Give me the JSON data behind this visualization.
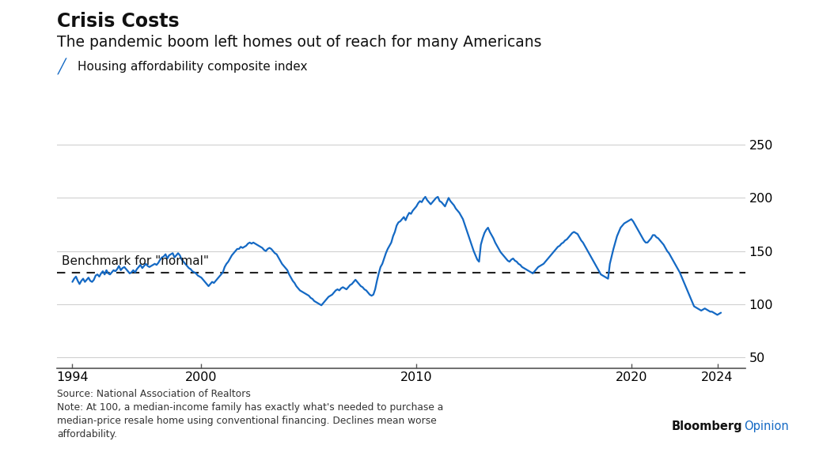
{
  "title": "Crisis Costs",
  "subtitle": "The pandemic boom left homes out of reach for many Americans",
  "legend_label": "Housing affordability composite index",
  "benchmark_label": "Benchmark for \"normal\"",
  "benchmark_value": 130,
  "source_text": "Source: National Association of Realtors\nNote: At 100, a median-income family has exactly what's needed to purchase a\nmedian-price resale home using conventional financing. Declines mean worse\naffordability.",
  "bloomberg_text": "Bloomberg",
  "opinion_text": "Opinion",
  "line_color": "#1469C4",
  "benchmark_color": "#222222",
  "ylim": [
    40,
    265
  ],
  "yticks": [
    50,
    100,
    150,
    200,
    250
  ],
  "xticks": [
    1994,
    2000,
    2010,
    2020,
    2024
  ],
  "background_color": "#ffffff",
  "title_fontsize": 17,
  "subtitle_fontsize": 13.5,
  "data": {
    "years": [
      1994.0,
      1994.083,
      1994.167,
      1994.25,
      1994.333,
      1994.417,
      1994.5,
      1994.583,
      1994.667,
      1994.75,
      1994.833,
      1994.917,
      1995.0,
      1995.083,
      1995.167,
      1995.25,
      1995.333,
      1995.417,
      1995.5,
      1995.583,
      1995.667,
      1995.75,
      1995.833,
      1995.917,
      1996.0,
      1996.083,
      1996.167,
      1996.25,
      1996.333,
      1996.417,
      1996.5,
      1996.583,
      1996.667,
      1996.75,
      1996.833,
      1996.917,
      1997.0,
      1997.083,
      1997.167,
      1997.25,
      1997.333,
      1997.417,
      1997.5,
      1997.583,
      1997.667,
      1997.75,
      1997.833,
      1997.917,
      1998.0,
      1998.083,
      1998.167,
      1998.25,
      1998.333,
      1998.417,
      1998.5,
      1998.583,
      1998.667,
      1998.75,
      1998.833,
      1998.917,
      1999.0,
      1999.083,
      1999.167,
      1999.25,
      1999.333,
      1999.417,
      1999.5,
      1999.583,
      1999.667,
      1999.75,
      1999.833,
      1999.917,
      2000.0,
      2000.083,
      2000.167,
      2000.25,
      2000.333,
      2000.417,
      2000.5,
      2000.583,
      2000.667,
      2000.75,
      2000.833,
      2000.917,
      2001.0,
      2001.083,
      2001.167,
      2001.25,
      2001.333,
      2001.417,
      2001.5,
      2001.583,
      2001.667,
      2001.75,
      2001.833,
      2001.917,
      2002.0,
      2002.083,
      2002.167,
      2002.25,
      2002.333,
      2002.417,
      2002.5,
      2002.583,
      2002.667,
      2002.75,
      2002.833,
      2002.917,
      2003.0,
      2003.083,
      2003.167,
      2003.25,
      2003.333,
      2003.417,
      2003.5,
      2003.583,
      2003.667,
      2003.75,
      2003.833,
      2003.917,
      2004.0,
      2004.083,
      2004.167,
      2004.25,
      2004.333,
      2004.417,
      2004.5,
      2004.583,
      2004.667,
      2004.75,
      2004.833,
      2004.917,
      2005.0,
      2005.083,
      2005.167,
      2005.25,
      2005.333,
      2005.417,
      2005.5,
      2005.583,
      2005.667,
      2005.75,
      2005.833,
      2005.917,
      2006.0,
      2006.083,
      2006.167,
      2006.25,
      2006.333,
      2006.417,
      2006.5,
      2006.583,
      2006.667,
      2006.75,
      2006.833,
      2006.917,
      2007.0,
      2007.083,
      2007.167,
      2007.25,
      2007.333,
      2007.417,
      2007.5,
      2007.583,
      2007.667,
      2007.75,
      2007.833,
      2007.917,
      2008.0,
      2008.083,
      2008.167,
      2008.25,
      2008.333,
      2008.417,
      2008.5,
      2008.583,
      2008.667,
      2008.75,
      2008.833,
      2008.917,
      2009.0,
      2009.083,
      2009.167,
      2009.25,
      2009.333,
      2009.417,
      2009.5,
      2009.583,
      2009.667,
      2009.75,
      2009.833,
      2009.917,
      2010.0,
      2010.083,
      2010.167,
      2010.25,
      2010.333,
      2010.417,
      2010.5,
      2010.583,
      2010.667,
      2010.75,
      2010.833,
      2010.917,
      2011.0,
      2011.083,
      2011.167,
      2011.25,
      2011.333,
      2011.417,
      2011.5,
      2011.583,
      2011.667,
      2011.75,
      2011.833,
      2011.917,
      2012.0,
      2012.083,
      2012.167,
      2012.25,
      2012.333,
      2012.417,
      2012.5,
      2012.583,
      2012.667,
      2012.75,
      2012.833,
      2012.917,
      2013.0,
      2013.083,
      2013.167,
      2013.25,
      2013.333,
      2013.417,
      2013.5,
      2013.583,
      2013.667,
      2013.75,
      2013.833,
      2013.917,
      2014.0,
      2014.083,
      2014.167,
      2014.25,
      2014.333,
      2014.417,
      2014.5,
      2014.583,
      2014.667,
      2014.75,
      2014.833,
      2014.917,
      2015.0,
      2015.083,
      2015.167,
      2015.25,
      2015.333,
      2015.417,
      2015.5,
      2015.583,
      2015.667,
      2015.75,
      2015.833,
      2015.917,
      2016.0,
      2016.083,
      2016.167,
      2016.25,
      2016.333,
      2016.417,
      2016.5,
      2016.583,
      2016.667,
      2016.75,
      2016.833,
      2016.917,
      2017.0,
      2017.083,
      2017.167,
      2017.25,
      2017.333,
      2017.417,
      2017.5,
      2017.583,
      2017.667,
      2017.75,
      2017.833,
      2017.917,
      2018.0,
      2018.083,
      2018.167,
      2018.25,
      2018.333,
      2018.417,
      2018.5,
      2018.583,
      2018.667,
      2018.75,
      2018.833,
      2018.917,
      2019.0,
      2019.083,
      2019.167,
      2019.25,
      2019.333,
      2019.417,
      2019.5,
      2019.583,
      2019.667,
      2019.75,
      2019.833,
      2019.917,
      2020.0,
      2020.083,
      2020.167,
      2020.25,
      2020.333,
      2020.417,
      2020.5,
      2020.583,
      2020.667,
      2020.75,
      2020.833,
      2020.917,
      2021.0,
      2021.083,
      2021.167,
      2021.25,
      2021.333,
      2021.417,
      2021.5,
      2021.583,
      2021.667,
      2021.75,
      2021.833,
      2021.917,
      2022.0,
      2022.083,
      2022.167,
      2022.25,
      2022.333,
      2022.417,
      2022.5,
      2022.583,
      2022.667,
      2022.75,
      2022.833,
      2022.917,
      2023.0,
      2023.083,
      2023.167,
      2023.25,
      2023.333,
      2023.417,
      2023.5,
      2023.583,
      2023.667,
      2023.75,
      2023.833,
      2023.917,
      2024.0,
      2024.083,
      2024.167
    ],
    "values": [
      121,
      124,
      126,
      122,
      119,
      122,
      124,
      121,
      123,
      125,
      122,
      121,
      123,
      127,
      128,
      126,
      129,
      131,
      128,
      132,
      129,
      128,
      130,
      132,
      131,
      133,
      136,
      132,
      134,
      135,
      133,
      131,
      129,
      130,
      132,
      130,
      133,
      135,
      137,
      134,
      136,
      138,
      136,
      135,
      136,
      137,
      138,
      137,
      139,
      142,
      144,
      145,
      147,
      143,
      146,
      147,
      148,
      144,
      146,
      148,
      146,
      142,
      140,
      138,
      136,
      134,
      133,
      131,
      130,
      129,
      127,
      126,
      125,
      123,
      121,
      119,
      117,
      119,
      121,
      120,
      122,
      124,
      126,
      128,
      130,
      135,
      138,
      140,
      143,
      146,
      148,
      150,
      152,
      152,
      154,
      153,
      154,
      155,
      157,
      158,
      157,
      158,
      157,
      156,
      155,
      154,
      153,
      151,
      150,
      152,
      153,
      152,
      150,
      148,
      147,
      144,
      141,
      138,
      136,
      134,
      132,
      128,
      125,
      122,
      120,
      117,
      115,
      113,
      112,
      111,
      110,
      109,
      108,
      106,
      105,
      103,
      102,
      101,
      100,
      99,
      101,
      103,
      105,
      107,
      108,
      109,
      111,
      113,
      114,
      113,
      115,
      116,
      115,
      114,
      116,
      118,
      119,
      121,
      123,
      121,
      119,
      117,
      116,
      114,
      113,
      111,
      109,
      108,
      109,
      114,
      122,
      129,
      135,
      138,
      143,
      148,
      152,
      155,
      158,
      164,
      168,
      174,
      177,
      178,
      180,
      182,
      179,
      183,
      186,
      185,
      188,
      190,
      192,
      195,
      197,
      196,
      199,
      201,
      198,
      196,
      194,
      196,
      198,
      200,
      201,
      197,
      196,
      194,
      192,
      196,
      200,
      197,
      195,
      193,
      190,
      188,
      186,
      183,
      180,
      175,
      170,
      165,
      160,
      155,
      150,
      146,
      142,
      140,
      156,
      162,
      167,
      170,
      172,
      168,
      165,
      162,
      158,
      155,
      152,
      149,
      147,
      145,
      143,
      141,
      140,
      142,
      143,
      141,
      140,
      138,
      137,
      135,
      134,
      133,
      132,
      131,
      130,
      129,
      131,
      133,
      135,
      136,
      137,
      138,
      140,
      142,
      144,
      146,
      148,
      150,
      152,
      154,
      155,
      157,
      158,
      160,
      161,
      163,
      165,
      167,
      168,
      167,
      166,
      163,
      160,
      158,
      155,
      152,
      149,
      146,
      143,
      140,
      137,
      134,
      131,
      128,
      127,
      126,
      125,
      124,
      138,
      145,
      152,
      158,
      164,
      168,
      172,
      174,
      176,
      177,
      178,
      179,
      180,
      178,
      175,
      172,
      169,
      166,
      163,
      160,
      158,
      158,
      160,
      162,
      165,
      165,
      163,
      162,
      160,
      158,
      156,
      153,
      150,
      148,
      145,
      142,
      139,
      136,
      133,
      130,
      126,
      122,
      118,
      114,
      110,
      106,
      102,
      98,
      97,
      96,
      95,
      94,
      95,
      96,
      95,
      94,
      93,
      93,
      92,
      91,
      90,
      91,
      92
    ]
  }
}
